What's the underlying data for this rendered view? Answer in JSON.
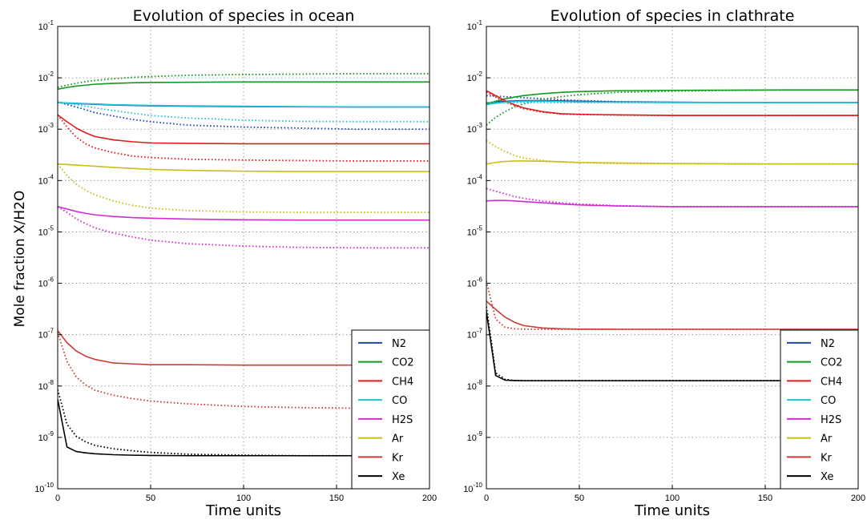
{
  "figure": {
    "ylabel": "Mole fraction X/H2O"
  },
  "legend": [
    {
      "label": "N2",
      "color": "#1f45b8"
    },
    {
      "label": "CO2",
      "color": "#119a1f"
    },
    {
      "label": "CH4",
      "color": "#e01b1b"
    },
    {
      "label": "CO",
      "color": "#1ec4d4"
    },
    {
      "label": "H2S",
      "color": "#d42ad6"
    },
    {
      "label": "Ar",
      "color": "#c8c012"
    },
    {
      "label": "Kr",
      "color": "#cc3b36"
    },
    {
      "label": "Xe",
      "color": "#000000"
    }
  ],
  "chart_data": [
    {
      "type": "line",
      "title": "Evolution of species in ocean",
      "xlabel": "Time units",
      "xlim": [
        0,
        200
      ],
      "ylim": [
        1e-10,
        0.1
      ],
      "yscale": "log",
      "grid": true,
      "legend_position": "lower-right",
      "x_ticks": [
        "0",
        "50",
        "100",
        "150",
        "200"
      ],
      "y_ticks": [
        {
          "base": "10",
          "exp": "-10"
        },
        {
          "base": "10",
          "exp": "-9"
        },
        {
          "base": "10",
          "exp": "-8"
        },
        {
          "base": "10",
          "exp": "-7"
        },
        {
          "base": "10",
          "exp": "-6"
        },
        {
          "base": "10",
          "exp": "-5"
        },
        {
          "base": "10",
          "exp": "-4"
        },
        {
          "base": "10",
          "exp": "-3"
        },
        {
          "base": "10",
          "exp": "-2"
        },
        {
          "base": "10",
          "exp": "-1"
        }
      ],
      "x": [
        0,
        5,
        10,
        15,
        20,
        30,
        40,
        50,
        70,
        100,
        130,
        160,
        200
      ],
      "series": [
        {
          "name": "N2",
          "style": "solid",
          "values": [
            0.0033,
            0.0032,
            0.00315,
            0.0031,
            0.00305,
            0.00295,
            0.0029,
            0.00285,
            0.0028,
            0.00275,
            0.00272,
            0.0027,
            0.0027
          ]
        },
        {
          "name": "N2",
          "style": "dotted",
          "values": [
            0.0034,
            0.003,
            0.0027,
            0.0024,
            0.0021,
            0.0018,
            0.00155,
            0.0014,
            0.0012,
            0.0011,
            0.00105,
            0.001,
            0.001
          ]
        },
        {
          "name": "CO2",
          "style": "solid",
          "values": [
            0.006,
            0.0065,
            0.0069,
            0.0072,
            0.0075,
            0.0078,
            0.008,
            0.0081,
            0.0082,
            0.0083,
            0.0083,
            0.0083,
            0.0083
          ]
        },
        {
          "name": "CO2",
          "style": "dotted",
          "values": [
            0.0065,
            0.0072,
            0.0078,
            0.0084,
            0.0089,
            0.0096,
            0.0102,
            0.0106,
            0.0112,
            0.0116,
            0.0118,
            0.012,
            0.012
          ]
        },
        {
          "name": "CH4",
          "style": "solid",
          "values": [
            0.0019,
            0.0014,
            0.00105,
            0.00085,
            0.00072,
            0.00062,
            0.00057,
            0.00054,
            0.00053,
            0.00052,
            0.00052,
            0.00052,
            0.00052
          ]
        },
        {
          "name": "CH4",
          "style": "dotted",
          "values": [
            0.0019,
            0.0011,
            0.0007,
            0.00052,
            0.00043,
            0.00035,
            0.0003,
            0.00028,
            0.00026,
            0.00025,
            0.000245,
            0.00024,
            0.00024
          ]
        },
        {
          "name": "CO",
          "style": "solid",
          "values": [
            0.0033,
            0.00325,
            0.0032,
            0.00315,
            0.0031,
            0.003,
            0.00295,
            0.0029,
            0.00285,
            0.0028,
            0.00275,
            0.00272,
            0.0027
          ]
        },
        {
          "name": "CO",
          "style": "dotted",
          "values": [
            0.0034,
            0.0032,
            0.003,
            0.0028,
            0.0026,
            0.0023,
            0.00205,
            0.00185,
            0.00165,
            0.0015,
            0.00142,
            0.0014,
            0.0014
          ]
        },
        {
          "name": "H2S",
          "style": "solid",
          "values": [
            3.1e-05,
            2.8e-05,
            2.5e-05,
            2.3e-05,
            2.15e-05,
            2e-05,
            1.9e-05,
            1.85e-05,
            1.78e-05,
            1.72e-05,
            1.7e-05,
            1.7e-05,
            1.7e-05
          ]
        },
        {
          "name": "H2S",
          "style": "dotted",
          "values": [
            3.1e-05,
            2.4e-05,
            1.8e-05,
            1.45e-05,
            1.2e-05,
            9.5e-06,
            8e-06,
            6.9e-06,
            5.9e-06,
            5.3e-06,
            5e-06,
            4.9e-06,
            4.9e-06
          ]
        },
        {
          "name": "Ar",
          "style": "solid",
          "values": [
            0.00021,
            0.000205,
            0.0002,
            0.000195,
            0.00019,
            0.00018,
            0.000172,
            0.000165,
            0.000158,
            0.000152,
            0.00015,
            0.00015,
            0.00015
          ]
        },
        {
          "name": "Ar",
          "style": "dotted",
          "values": [
            0.00021,
            0.000125,
            8.5e-05,
            6.5e-05,
            5.3e-05,
            4e-05,
            3.3e-05,
            2.9e-05,
            2.6e-05,
            2.45e-05,
            2.4e-05,
            2.4e-05,
            2.4e-05
          ]
        },
        {
          "name": "Kr",
          "style": "solid",
          "values": [
            1.2e-07,
            7e-08,
            4.8e-08,
            3.8e-08,
            3.3e-08,
            2.8e-08,
            2.7e-08,
            2.6e-08,
            2.6e-08,
            2.55e-08,
            2.55e-08,
            2.55e-08,
            2.55e-08
          ]
        },
        {
          "name": "Kr",
          "style": "dotted",
          "values": [
            1.1e-07,
            3e-08,
            1.5e-08,
            1.05e-08,
            8.3e-09,
            6.6e-09,
            5.7e-09,
            5.1e-09,
            4.5e-09,
            4e-09,
            3.8e-09,
            3.7e-09,
            3.7e-09
          ]
        },
        {
          "name": "Xe",
          "style": "solid",
          "values": [
            5.5e-09,
            6.5e-10,
            5.3e-10,
            5e-10,
            4.8e-10,
            4.6e-10,
            4.5e-10,
            4.45e-10,
            4.4e-10,
            4.4e-10,
            4.4e-10,
            4.4e-10,
            4.4e-10
          ]
        },
        {
          "name": "Xe",
          "style": "dotted",
          "values": [
            8.5e-09,
            1.8e-09,
            1.05e-09,
            8.2e-10,
            7e-10,
            6e-10,
            5.5e-10,
            5.1e-10,
            4.7e-10,
            4.5e-10,
            4.4e-10,
            4.4e-10,
            4.4e-10
          ]
        }
      ]
    },
    {
      "type": "line",
      "title": "Evolution of species in clathrate",
      "xlabel": "Time units",
      "xlim": [
        0,
        200
      ],
      "ylim": [
        1e-10,
        0.1
      ],
      "yscale": "log",
      "grid": true,
      "legend_position": "lower-right",
      "x_ticks": [
        "0",
        "50",
        "100",
        "150",
        "200"
      ],
      "y_ticks": [
        {
          "base": "10",
          "exp": "-10"
        },
        {
          "base": "10",
          "exp": "-9"
        },
        {
          "base": "10",
          "exp": "-8"
        },
        {
          "base": "10",
          "exp": "-7"
        },
        {
          "base": "10",
          "exp": "-6"
        },
        {
          "base": "10",
          "exp": "-5"
        },
        {
          "base": "10",
          "exp": "-4"
        },
        {
          "base": "10",
          "exp": "-3"
        },
        {
          "base": "10",
          "exp": "-2"
        },
        {
          "base": "10",
          "exp": "-1"
        }
      ],
      "x": [
        0,
        5,
        10,
        15,
        20,
        30,
        40,
        50,
        70,
        100,
        130,
        160,
        200
      ],
      "series": [
        {
          "name": "N2",
          "style": "solid",
          "values": [
            0.0032,
            0.0034,
            0.0035,
            0.00355,
            0.0036,
            0.0036,
            0.00355,
            0.0035,
            0.0034,
            0.00335,
            0.0033,
            0.0033,
            0.0033
          ]
        },
        {
          "name": "N2",
          "style": "dotted",
          "values": [
            0.0045,
            0.0044,
            0.0043,
            0.0042,
            0.0041,
            0.0039,
            0.00375,
            0.0036,
            0.00345,
            0.00335,
            0.0033,
            0.0033,
            0.0033
          ]
        },
        {
          "name": "CO2",
          "style": "solid",
          "values": [
            0.0031,
            0.0035,
            0.0039,
            0.0042,
            0.0045,
            0.0049,
            0.0052,
            0.0054,
            0.0056,
            0.0057,
            0.00575,
            0.0058,
            0.0058
          ]
        },
        {
          "name": "CO2",
          "style": "dotted",
          "values": [
            0.0012,
            0.0017,
            0.0022,
            0.0027,
            0.0031,
            0.0038,
            0.0043,
            0.0047,
            0.0052,
            0.0055,
            0.0057,
            0.0058,
            0.0058
          ]
        },
        {
          "name": "CH4",
          "style": "solid",
          "values": [
            0.0056,
            0.0045,
            0.0036,
            0.003,
            0.0026,
            0.0022,
            0.002,
            0.00195,
            0.0019,
            0.00185,
            0.00185,
            0.00185,
            0.00185
          ]
        },
        {
          "name": "CH4",
          "style": "dotted",
          "values": [
            0.0053,
            0.0042,
            0.0034,
            0.0029,
            0.0025,
            0.00215,
            0.00198,
            0.00193,
            0.00188,
            0.00185,
            0.00185,
            0.00185,
            0.00185
          ]
        },
        {
          "name": "CO",
          "style": "solid",
          "values": [
            0.003,
            0.0032,
            0.00335,
            0.00345,
            0.0035,
            0.0035,
            0.00345,
            0.0034,
            0.00335,
            0.0033,
            0.0033,
            0.0033,
            0.0033
          ]
        },
        {
          "name": "CO",
          "style": "dotted",
          "values": [
            0.0033,
            0.0033,
            0.0033,
            0.0033,
            0.0033,
            0.0033,
            0.0033,
            0.0033,
            0.0033,
            0.0033,
            0.0033,
            0.0033,
            0.0033
          ]
        },
        {
          "name": "H2S",
          "style": "solid",
          "values": [
            4e-05,
            4.1e-05,
            4.1e-05,
            4e-05,
            3.9e-05,
            3.7e-05,
            3.5e-05,
            3.35e-05,
            3.2e-05,
            3.1e-05,
            3.1e-05,
            3.1e-05,
            3.1e-05
          ]
        },
        {
          "name": "H2S",
          "style": "dotted",
          "values": [
            7e-05,
            6.2e-05,
            5.5e-05,
            4.9e-05,
            4.5e-05,
            4e-05,
            3.7e-05,
            3.5e-05,
            3.25e-05,
            3.1e-05,
            3.1e-05,
            3.1e-05,
            3.1e-05
          ]
        },
        {
          "name": "Ar",
          "style": "solid",
          "values": [
            0.00021,
            0.000225,
            0.000235,
            0.00024,
            0.00024,
            0.000238,
            0.000232,
            0.000225,
            0.00022,
            0.000215,
            0.000212,
            0.00021,
            0.00021
          ]
        },
        {
          "name": "Ar",
          "style": "dotted",
          "values": [
            0.0006,
            0.00046,
            0.00037,
            0.00031,
            0.000275,
            0.000245,
            0.00023,
            0.000222,
            0.000215,
            0.000212,
            0.00021,
            0.00021,
            0.00021
          ]
        },
        {
          "name": "Kr",
          "style": "solid",
          "values": [
            4.5e-07,
            3.1e-07,
            2.2e-07,
            1.75e-07,
            1.5e-07,
            1.35e-07,
            1.3e-07,
            1.28e-07,
            1.27e-07,
            1.27e-07,
            1.27e-07,
            1.27e-07,
            1.27e-07
          ]
        },
        {
          "name": "Kr",
          "style": "dotted",
          "values": [
            1.1e-06,
            2e-07,
            1.4e-07,
            1.3e-07,
            1.28e-07,
            1.27e-07,
            1.27e-07,
            1.27e-07,
            1.27e-07,
            1.27e-07,
            1.27e-07,
            1.27e-07,
            1.27e-07
          ]
        },
        {
          "name": "Xe",
          "style": "solid",
          "values": [
            2.8e-07,
            1.6e-08,
            1.3e-08,
            1.28e-08,
            1.27e-08,
            1.27e-08,
            1.27e-08,
            1.27e-08,
            1.27e-08,
            1.27e-08,
            1.27e-08,
            1.27e-08,
            1.27e-08
          ]
        },
        {
          "name": "Xe",
          "style": "dotted",
          "values": [
            3.5e-07,
            1.8e-08,
            1.35e-08,
            1.28e-08,
            1.27e-08,
            1.27e-08,
            1.27e-08,
            1.27e-08,
            1.27e-08,
            1.27e-08,
            1.27e-08,
            1.27e-08,
            1.27e-08
          ]
        }
      ]
    }
  ]
}
